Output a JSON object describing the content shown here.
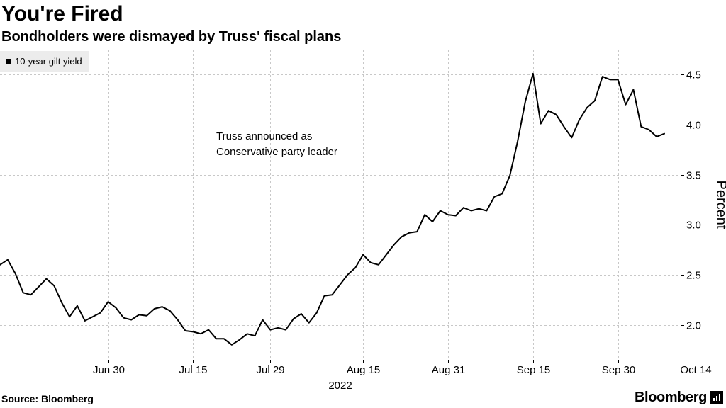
{
  "header": {
    "title": "You're Fired",
    "subtitle": "Bondholders were dismayed by Truss' fiscal plans"
  },
  "footer": {
    "source": "Source: Bloomberg",
    "logo_text": "Bloomberg"
  },
  "chart_data": {
    "type": "line",
    "title": "You're Fired",
    "subtitle": "Bondholders were dismayed by Truss' fiscal plans",
    "xlabel": "2022",
    "ylabel": "Percent",
    "ylim": [
      1.65,
      4.75
    ],
    "yticks": [
      2.0,
      2.5,
      3.0,
      3.5,
      4.0,
      4.5
    ],
    "ytick_labels": [
      "2.0",
      "2.5",
      "3.0",
      "3.5",
      "4.0",
      "4.5"
    ],
    "xticks": [
      {
        "index": 14,
        "label": "Jun 30"
      },
      {
        "index": 25,
        "label": "Jul 15"
      },
      {
        "index": 35,
        "label": "Jul 29"
      },
      {
        "index": 47,
        "label": "Aug 15"
      },
      {
        "index": 58,
        "label": "Aug 31"
      },
      {
        "index": 69,
        "label": "Sep 15"
      },
      {
        "index": 80,
        "label": "Sep 30"
      },
      {
        "index": 90,
        "label": "Oct 14"
      }
    ],
    "grid": true,
    "legend": {
      "position": "top-left",
      "entries": [
        "10-year gilt yield"
      ]
    },
    "annotations": [
      "Truss announced as",
      "Conservative party leader"
    ],
    "series": [
      {
        "name": "10-year gilt yield",
        "values": [
          2.6,
          2.65,
          2.51,
          2.32,
          2.3,
          2.38,
          2.46,
          2.39,
          2.22,
          2.08,
          2.19,
          2.04,
          2.08,
          2.12,
          2.23,
          2.17,
          2.07,
          2.05,
          2.1,
          2.09,
          2.16,
          2.18,
          2.14,
          2.05,
          1.94,
          1.93,
          1.91,
          1.95,
          1.86,
          1.86,
          1.8,
          1.85,
          1.91,
          1.89,
          2.05,
          1.95,
          1.97,
          1.95,
          2.06,
          2.11,
          2.02,
          2.12,
          2.29,
          2.3,
          2.4,
          2.5,
          2.57,
          2.7,
          2.62,
          2.6,
          2.7,
          2.8,
          2.88,
          2.92,
          2.93,
          3.1,
          3.03,
          3.14,
          3.1,
          3.09,
          3.17,
          3.14,
          3.16,
          3.14,
          3.28,
          3.31,
          3.49,
          3.83,
          4.23,
          4.51,
          4.01,
          4.14,
          4.1,
          3.98,
          3.87,
          4.05,
          4.17,
          4.24,
          4.48,
          4.45,
          4.45,
          4.2,
          4.35,
          3.98,
          3.95,
          3.88,
          3.91
        ]
      }
    ]
  }
}
